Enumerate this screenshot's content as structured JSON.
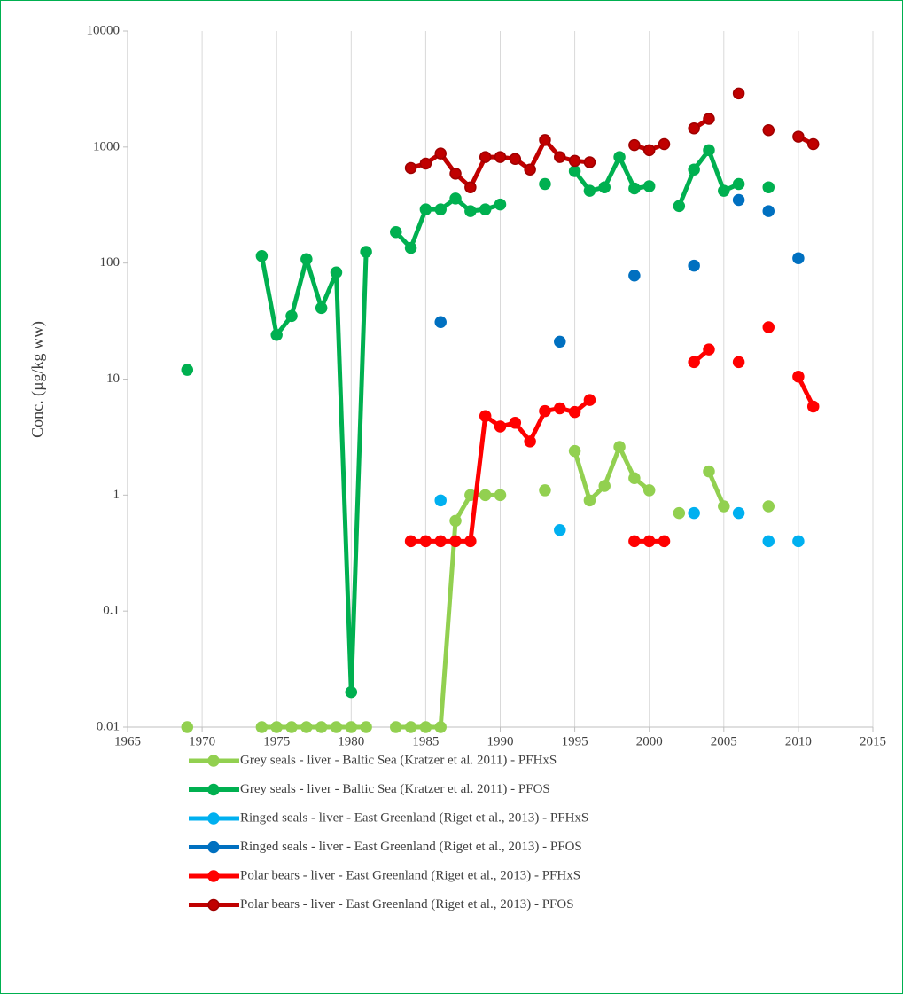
{
  "chart_data": {
    "type": "line",
    "y_label": "Conc. (µg/kg ww)",
    "log_scale_y": true,
    "grid": "x",
    "xlim": [
      1965,
      2015
    ],
    "xticks": [
      1965,
      1970,
      1975,
      1980,
      1985,
      1990,
      1995,
      2000,
      2005,
      2010,
      2015
    ],
    "ylim": [
      0.01,
      10000
    ],
    "yticks": [
      10000,
      1000,
      100,
      10,
      1,
      0.1,
      0.01
    ],
    "legend": "bottom",
    "series": [
      {
        "name": "Grey seals - liver - Baltic Sea (Kratzer et al. 2011) - PFHxS",
        "color": "#92d050",
        "x": [
          1969,
          1974,
          1975,
          1976,
          1977,
          1978,
          1979,
          1980,
          1981,
          1983,
          1984,
          1985,
          1986,
          1987,
          1988,
          1989,
          1990,
          1993,
          1995,
          1996,
          1997,
          1998,
          1999,
          2000,
          2002,
          2004,
          2005,
          2008
        ],
        "values": [
          0.01,
          0.01,
          0.01,
          0.01,
          0.01,
          0.01,
          0.01,
          0.01,
          0.01,
          0.01,
          0.01,
          0.01,
          0.01,
          0.6,
          1.0,
          1.0,
          1.0,
          1.1,
          2.4,
          0.9,
          1.2,
          2.6,
          1.4,
          1.1,
          0.7,
          1.6,
          0.8,
          0.8
        ]
      },
      {
        "name": "Grey seals - liver - Baltic Sea (Kratzer et al. 2011) - PFOS",
        "color": "#00b050",
        "x": [
          1969,
          1974,
          1975,
          1976,
          1977,
          1978,
          1979,
          1980,
          1981,
          1983,
          1984,
          1985,
          1986,
          1987,
          1988,
          1989,
          1990,
          1993,
          1995,
          1996,
          1997,
          1998,
          1999,
          2000,
          2002,
          2003,
          2004,
          2005,
          2006,
          2008
        ],
        "values": [
          12,
          115,
          24,
          35,
          108,
          41,
          83,
          0.02,
          125,
          185,
          135,
          290,
          290,
          360,
          280,
          290,
          320,
          480,
          620,
          420,
          450,
          820,
          440,
          460,
          310,
          640,
          940,
          420,
          480,
          450
        ]
      },
      {
        "name": "Ringed seals - liver - East Greenland (Riget et al., 2013) - PFHxS",
        "color": "#00b0f0",
        "x": [
          1986,
          1994,
          2003,
          2006,
          2008,
          2010
        ],
        "values": [
          0.9,
          0.5,
          0.7,
          0.7,
          0.4,
          0.4
        ]
      },
      {
        "name": "Ringed seals - liver - East Greenland (Riget et al., 2013) - PFOS",
        "color": "#0070c0",
        "x": [
          1986,
          1994,
          1999,
          2003,
          2006,
          2008,
          2010
        ],
        "values": [
          31,
          21,
          78,
          95,
          350,
          280,
          110
        ]
      },
      {
        "name": "Polar bears - liver - East Greenland (Riget et al., 2013) - PFHxS",
        "color": "#ff0000",
        "x": [
          1984,
          1985,
          1986,
          1987,
          1988,
          1989,
          1990,
          1991,
          1992,
          1993,
          1994,
          1995,
          1996,
          1999,
          2000,
          2001,
          2003,
          2004,
          2006,
          2008,
          2010,
          2011
        ],
        "values": [
          0.4,
          0.4,
          0.4,
          0.4,
          0.4,
          4.8,
          3.9,
          4.2,
          2.9,
          5.3,
          5.6,
          5.2,
          6.6,
          0.4,
          0.4,
          0.4,
          14,
          18,
          14,
          28,
          10.5,
          5.8
        ]
      },
      {
        "name": "Polar bears - liver - East Greenland (Riget et al., 2013) - PFOS",
        "color": "#c00000",
        "x": [
          1984,
          1985,
          1986,
          1987,
          1988,
          1989,
          1990,
          1991,
          1992,
          1993,
          1994,
          1995,
          1996,
          1999,
          2000,
          2001,
          2003,
          2004,
          2006,
          2008,
          2010,
          2011
        ],
        "values": [
          660,
          720,
          880,
          590,
          450,
          820,
          820,
          790,
          640,
          1150,
          820,
          760,
          740,
          1040,
          940,
          1060,
          1450,
          1750,
          2900,
          1400,
          1230,
          1060
        ]
      }
    ]
  }
}
